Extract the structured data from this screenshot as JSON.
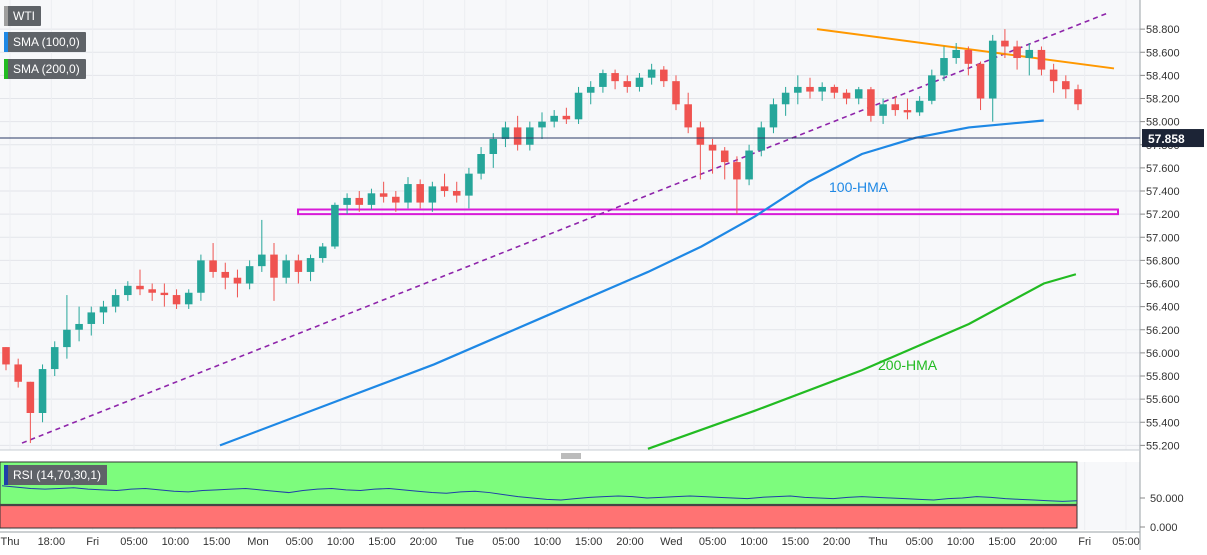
{
  "legend": {
    "symbol": "WTI",
    "sma100": "SMA (100,0)",
    "sma200": "SMA (200,0)",
    "rsi": "RSI (14,70,30,1)"
  },
  "colors": {
    "bull": "#26a69a",
    "bear": "#ef5350",
    "hma100": "#1e88e5",
    "hma200": "#22bb22",
    "trend_support": "#8e24aa",
    "trend_resistance": "#ff9800",
    "zone": "#d81bd8",
    "rsi_line": "#1f3fa8",
    "rsi_overbought": "#7dfc7d",
    "rsi_oversold": "#ff7373"
  },
  "chart_data": {
    "type": "candlestick",
    "price": {
      "current": "57.858",
      "y_ticks": [
        "58.800",
        "58.600",
        "58.400",
        "58.200",
        "58.000",
        "57.800",
        "57.600",
        "57.400",
        "57.200",
        "57.000",
        "56.800",
        "56.600",
        "56.400",
        "56.200",
        "56.000",
        "55.800",
        "55.600",
        "55.400",
        "55.200"
      ],
      "ylim": [
        55.16,
        59.0
      ],
      "current_value": 57.858
    },
    "x_ticks": [
      "Thu",
      "18:00",
      "Fri",
      "05:00",
      "10:00",
      "15:00",
      "Mon",
      "05:00",
      "10:00",
      "15:00",
      "20:00",
      "Tue",
      "05:00",
      "10:00",
      "15:00",
      "20:00",
      "Wed",
      "05:00",
      "10:00",
      "15:00",
      "20:00",
      "Thu",
      "05:00",
      "10:00",
      "15:00",
      "20:00",
      "Fri",
      "05:00"
    ],
    "annotations": {
      "hma100_label": "100-HMA",
      "hma200_label": "200-HMA"
    },
    "horizontal_zone": [
      57.2,
      57.24
    ],
    "support_trendline": [
      [
        0,
        55.22
      ],
      [
        103,
        58.94
      ]
    ],
    "resistance_trendline": [
      [
        73,
        58.8
      ],
      [
        103,
        58.46
      ]
    ],
    "hma100": [
      [
        20,
        55.2
      ],
      [
        30,
        55.55
      ],
      [
        40,
        55.9
      ],
      [
        50,
        56.3
      ],
      [
        60,
        56.7
      ],
      [
        65,
        56.92
      ],
      [
        70,
        57.18
      ],
      [
        75,
        57.48
      ],
      [
        80,
        57.72
      ],
      [
        85,
        57.86
      ],
      [
        90,
        57.95
      ],
      [
        97,
        58.01
      ]
    ],
    "hma200": [
      [
        60,
        55.17
      ],
      [
        70,
        55.5
      ],
      [
        80,
        55.85
      ],
      [
        90,
        56.25
      ],
      [
        97,
        56.6
      ],
      [
        100,
        56.68
      ]
    ],
    "candles": [
      [
        56.05,
        56.05,
        55.85,
        55.9
      ],
      [
        55.9,
        55.95,
        55.7,
        55.75
      ],
      [
        55.75,
        55.75,
        55.22,
        55.48
      ],
      [
        55.48,
        55.9,
        55.4,
        55.86
      ],
      [
        55.86,
        56.1,
        55.8,
        56.05
      ],
      [
        56.05,
        56.5,
        55.95,
        56.2
      ],
      [
        56.2,
        56.4,
        56.1,
        56.25
      ],
      [
        56.25,
        56.4,
        56.15,
        56.35
      ],
      [
        56.35,
        56.45,
        56.25,
        56.4
      ],
      [
        56.4,
        56.55,
        56.35,
        56.5
      ],
      [
        56.5,
        56.62,
        56.45,
        56.58
      ],
      [
        56.58,
        56.72,
        56.5,
        56.55
      ],
      [
        56.55,
        56.6,
        56.45,
        56.52
      ],
      [
        56.52,
        56.6,
        56.4,
        56.5
      ],
      [
        56.5,
        56.55,
        56.38,
        56.42
      ],
      [
        56.42,
        56.55,
        56.38,
        56.52
      ],
      [
        56.52,
        56.85,
        56.45,
        56.8
      ],
      [
        56.8,
        56.95,
        56.65,
        56.7
      ],
      [
        56.7,
        56.78,
        56.55,
        56.65
      ],
      [
        56.65,
        56.72,
        56.48,
        56.6
      ],
      [
        56.6,
        56.8,
        56.55,
        56.75
      ],
      [
        56.75,
        57.15,
        56.7,
        56.85
      ],
      [
        56.85,
        56.95,
        56.45,
        56.65
      ],
      [
        56.65,
        56.85,
        56.6,
        56.8
      ],
      [
        56.8,
        56.85,
        56.6,
        56.7
      ],
      [
        56.7,
        56.85,
        56.62,
        56.82
      ],
      [
        56.82,
        56.95,
        56.78,
        56.92
      ],
      [
        56.92,
        57.3,
        56.9,
        57.28
      ],
      [
        57.28,
        57.38,
        57.2,
        57.34
      ],
      [
        57.34,
        57.4,
        57.22,
        57.28
      ],
      [
        57.28,
        57.42,
        57.24,
        57.38
      ],
      [
        57.38,
        57.48,
        57.3,
        57.35
      ],
      [
        57.35,
        57.4,
        57.22,
        57.3
      ],
      [
        57.3,
        57.52,
        57.25,
        57.46
      ],
      [
        57.46,
        57.5,
        57.25,
        57.3
      ],
      [
        57.3,
        57.48,
        57.22,
        57.44
      ],
      [
        57.44,
        57.55,
        57.35,
        57.4
      ],
      [
        57.4,
        57.48,
        57.3,
        57.36
      ],
      [
        57.36,
        57.6,
        57.25,
        57.55
      ],
      [
        57.55,
        57.78,
        57.5,
        57.72
      ],
      [
        57.72,
        57.9,
        57.6,
        57.85
      ],
      [
        57.85,
        58.0,
        57.78,
        57.95
      ],
      [
        57.95,
        58.05,
        57.75,
        57.8
      ],
      [
        57.8,
        58.0,
        57.75,
        57.95
      ],
      [
        57.95,
        58.08,
        57.85,
        58.0
      ],
      [
        58.0,
        58.1,
        57.95,
        58.05
      ],
      [
        58.05,
        58.12,
        57.98,
        58.02
      ],
      [
        58.02,
        58.3,
        57.98,
        58.25
      ],
      [
        58.25,
        58.35,
        58.15,
        58.3
      ],
      [
        58.3,
        58.45,
        58.25,
        58.42
      ],
      [
        58.42,
        58.45,
        58.28,
        58.35
      ],
      [
        58.35,
        58.4,
        58.25,
        58.3
      ],
      [
        58.3,
        58.42,
        58.26,
        58.38
      ],
      [
        58.38,
        58.5,
        58.32,
        58.45
      ],
      [
        58.45,
        58.48,
        58.3,
        58.35
      ],
      [
        58.35,
        58.4,
        58.1,
        58.15
      ],
      [
        58.15,
        58.25,
        57.9,
        57.95
      ],
      [
        57.95,
        58.0,
        57.5,
        57.8
      ],
      [
        57.8,
        57.85,
        57.55,
        57.75
      ],
      [
        57.75,
        57.78,
        57.5,
        57.65
      ],
      [
        57.65,
        57.7,
        57.2,
        57.5
      ],
      [
        57.5,
        57.8,
        57.45,
        57.75
      ],
      [
        57.75,
        58.0,
        57.7,
        57.95
      ],
      [
        57.95,
        58.2,
        57.9,
        58.15
      ],
      [
        58.15,
        58.3,
        58.05,
        58.25
      ],
      [
        58.25,
        58.4,
        58.15,
        58.3
      ],
      [
        58.3,
        58.38,
        58.2,
        58.26
      ],
      [
        58.26,
        58.34,
        58.18,
        58.3
      ],
      [
        58.3,
        58.32,
        58.2,
        58.25
      ],
      [
        58.25,
        58.28,
        58.15,
        58.2
      ],
      [
        58.2,
        58.3,
        58.15,
        58.28
      ],
      [
        58.28,
        58.3,
        58.0,
        58.05
      ],
      [
        58.05,
        58.2,
        57.98,
        58.15
      ],
      [
        58.15,
        58.22,
        58.05,
        58.1
      ],
      [
        58.1,
        58.2,
        58.02,
        58.08
      ],
      [
        58.08,
        58.22,
        58.05,
        58.18
      ],
      [
        58.18,
        58.45,
        58.15,
        58.4
      ],
      [
        58.4,
        58.65,
        58.35,
        58.55
      ],
      [
        58.55,
        58.68,
        58.5,
        58.62
      ],
      [
        58.62,
        58.65,
        58.4,
        58.5
      ],
      [
        58.5,
        58.52,
        58.1,
        58.2
      ],
      [
        58.2,
        58.75,
        58.0,
        58.7
      ],
      [
        58.7,
        58.8,
        58.55,
        58.65
      ],
      [
        58.65,
        58.7,
        58.45,
        58.55
      ],
      [
        58.55,
        58.68,
        58.4,
        58.62
      ],
      [
        58.62,
        58.65,
        58.4,
        58.45
      ],
      [
        58.45,
        58.5,
        58.25,
        58.35
      ],
      [
        58.35,
        58.4,
        58.2,
        58.28
      ],
      [
        58.28,
        58.32,
        58.1,
        58.15
      ]
    ],
    "rsi": {
      "y_ticks": [
        "50.000",
        "0.000"
      ],
      "ylim": [
        0,
        100
      ],
      "overbought": 70,
      "oversold": 30,
      "values": [
        68,
        66,
        64,
        63,
        64,
        65,
        63,
        62,
        61,
        63,
        64,
        62,
        60,
        59,
        61,
        62,
        63,
        64,
        62,
        60,
        58,
        61,
        63,
        64,
        62,
        61,
        63,
        64,
        62,
        60,
        58,
        57,
        59,
        60,
        58,
        55,
        52,
        50,
        48,
        47,
        49,
        51,
        52,
        53,
        52,
        50,
        51,
        52,
        53,
        52,
        51,
        50,
        49,
        51,
        52,
        53,
        51,
        50,
        49,
        51,
        52,
        51,
        50,
        49,
        48,
        47,
        49,
        50,
        52,
        51,
        49,
        48,
        47,
        46,
        45,
        46
      ]
    }
  }
}
